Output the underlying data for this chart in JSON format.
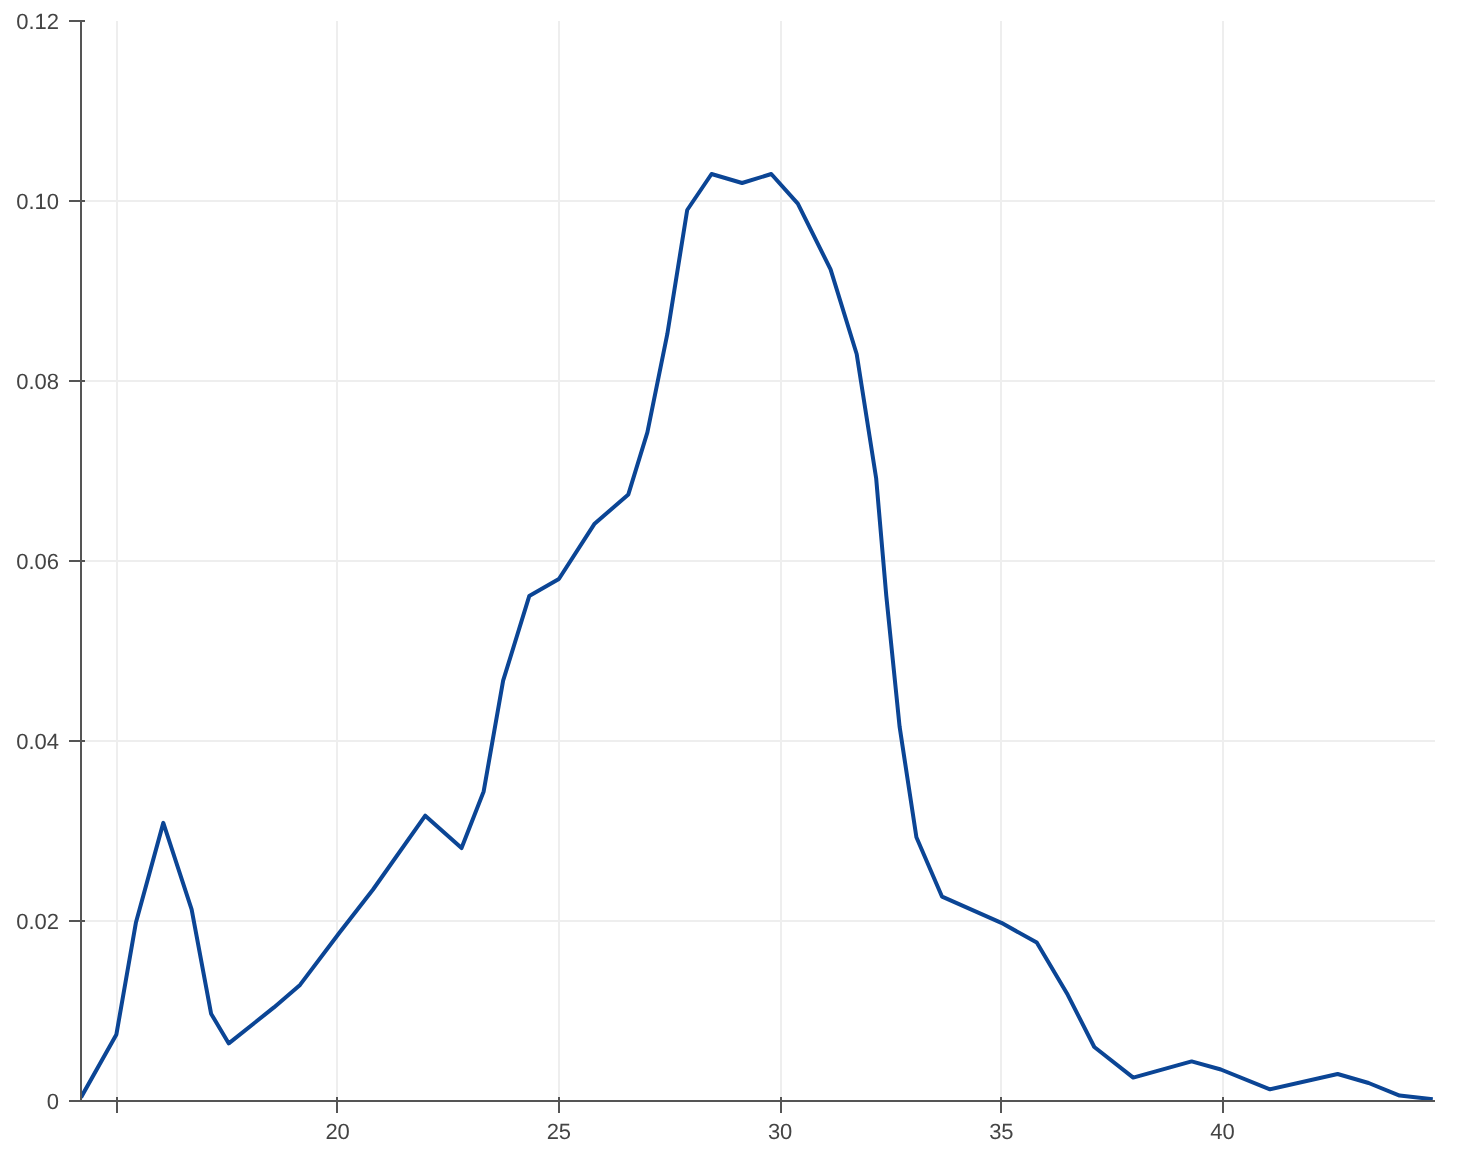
{
  "chart_data": {
    "type": "line",
    "x": [
      14.2,
      15.0,
      15.44,
      16.06,
      16.7,
      17.14,
      17.54,
      18.56,
      19.15,
      20.04,
      20.8,
      21.98,
      22.8,
      23.3,
      23.74,
      24.33,
      25.0,
      25.8,
      26.57,
      27.0,
      27.45,
      27.9,
      28.45,
      29.14,
      29.8,
      30.4,
      31.14,
      31.73,
      32.17,
      32.4,
      32.7,
      33.08,
      33.66,
      35.0,
      35.8,
      36.5,
      37.1,
      37.98,
      39.3,
      39.96,
      41.07,
      42.6,
      43.3,
      44.0,
      44.75
    ],
    "series": [
      {
        "color": "#0b4595",
        "values": [
          0.0004,
          0.0074,
          0.0198,
          0.0309,
          0.0213,
          0.0097,
          0.0064,
          0.0104,
          0.0129,
          0.0187,
          0.0235,
          0.0317,
          0.0281,
          0.0344,
          0.0467,
          0.0561,
          0.058,
          0.0641,
          0.0674,
          0.0743,
          0.0852,
          0.099,
          0.103,
          0.102,
          0.103,
          0.0997,
          0.0924,
          0.083,
          0.0692,
          0.0561,
          0.0416,
          0.0293,
          0.0227,
          0.0198,
          0.0176,
          0.0118,
          0.006,
          0.0026,
          0.0044,
          0.0035,
          0.0013,
          0.003,
          0.002,
          0.0006,
          0.0002
        ]
      }
    ],
    "xlim": [
      14.2,
      44.8
    ],
    "xticks": [
      {
        "value": 15,
        "label": null
      },
      20,
      25,
      30,
      35,
      40
    ],
    "ylim": [
      0,
      0.12
    ],
    "yticks": [
      {
        "value": 0,
        "label": "0"
      },
      {
        "value": 0.02,
        "label": "0.02"
      },
      {
        "value": 0.04,
        "label": "0.04"
      },
      {
        "value": 0.06,
        "label": "0.06"
      },
      {
        "value": 0.08,
        "label": "0.08"
      },
      {
        "value": 0.1,
        "label": "0.10"
      },
      {
        "value": 0.12,
        "label": "0.12"
      }
    ],
    "grid": true
  }
}
